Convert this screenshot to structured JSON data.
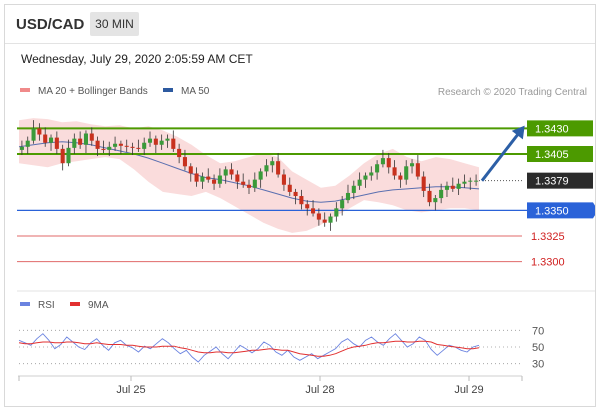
{
  "header": {
    "symbol": "USD/CAD",
    "timeframe": "30 MIN"
  },
  "datetime": "Wednesday, July 29, 2020 2:05:59 AM CET",
  "legend": {
    "bollinger": "MA 20 + Bollinger Bands",
    "ma50": "MA 50",
    "credit": "Research © 2020 Trading Central",
    "rsi": "RSI",
    "rsi_ma": "9MA"
  },
  "colors": {
    "resistance": "#4c9a00",
    "support": "#2a62d8",
    "minor_support": "#e06a6a",
    "up_candle": "#3a9a3a",
    "down_candle": "#c8311e",
    "bollinger_fill": "#f9d6d6",
    "ma50_line": "#5a6fb0",
    "arrow": "#2c5fa6",
    "rsi_line": "#6b83e0",
    "rsi_ma_line": "#e23030",
    "last_price_bg": "#2b2b2b"
  },
  "chart_data": {
    "type": "candlestick",
    "price_axis": {
      "range": [
        1.3285,
        1.3445
      ],
      "levels": [
        {
          "value": 1.343,
          "label": "1.3430",
          "kind": "resistance"
        },
        {
          "value": 1.3405,
          "label": "1.3405",
          "kind": "resistance"
        },
        {
          "value": 1.3379,
          "label": "1.3379",
          "kind": "last"
        },
        {
          "value": 1.335,
          "label": "1.3350",
          "kind": "support"
        },
        {
          "value": 1.3325,
          "label": "1.3325",
          "kind": "minor"
        },
        {
          "value": 1.33,
          "label": "1.3300",
          "kind": "minor"
        }
      ]
    },
    "x_ticks": [
      "Jul 25",
      "Jul 28",
      "Jul 29"
    ],
    "price_path": [
      1.3412,
      1.3418,
      1.343,
      1.3424,
      1.3416,
      1.3421,
      1.341,
      1.3396,
      1.3411,
      1.342,
      1.3414,
      1.3425,
      1.3418,
      1.341,
      1.3409,
      1.3412,
      1.3415,
      1.3413,
      1.3412,
      1.3411,
      1.341,
      1.3416,
      1.342,
      1.3414,
      1.3418,
      1.342,
      1.341,
      1.3402,
      1.3393,
      1.3386,
      1.3378,
      1.3383,
      1.338,
      1.3376,
      1.3384,
      1.339,
      1.3385,
      1.3378,
      1.3375,
      1.3372,
      1.338,
      1.3388,
      1.3394,
      1.3398,
      1.3385,
      1.3375,
      1.3368,
      1.3364,
      1.3356,
      1.3352,
      1.3347,
      1.3341,
      1.3338,
      1.3344,
      1.3352,
      1.336,
      1.3367,
      1.3374,
      1.338,
      1.3384,
      1.3387,
      1.3395,
      1.3401,
      1.3392,
      1.3384,
      1.338,
      1.3393,
      1.3396,
      1.3383,
      1.3369,
      1.3358,
      1.3362,
      1.337,
      1.3374,
      1.3371,
      1.3376,
      1.3378,
      1.3379,
      1.3379
    ],
    "bollinger": {
      "upper": [
        1.3438,
        1.344,
        1.3439,
        1.3436,
        1.3437,
        1.3434,
        1.3432,
        1.3433,
        1.343,
        1.3432,
        1.3428,
        1.3422,
        1.3414,
        1.3404,
        1.3396,
        1.3398,
        1.3402,
        1.3406,
        1.3402,
        1.3388,
        1.338,
        1.3372,
        1.3374,
        1.3384,
        1.3396,
        1.3405,
        1.341,
        1.3402,
        1.3398,
        1.3402,
        1.34,
        1.3396,
        1.3392
      ],
      "lower": [
        1.3396,
        1.3394,
        1.3392,
        1.3396,
        1.3398,
        1.34,
        1.3402,
        1.34,
        1.339,
        1.3378,
        1.3368,
        1.3366,
        1.3364,
        1.3368,
        1.3362,
        1.3354,
        1.3346,
        1.3338,
        1.3332,
        1.3328,
        1.333,
        1.3336,
        1.3344,
        1.3352,
        1.336,
        1.3358,
        1.3355,
        1.335,
        1.3348,
        1.335,
        1.3352,
        1.3352,
        1.335
      ]
    },
    "ma50": [
      1.3412,
      1.3414,
      1.3416,
      1.3417,
      1.3416,
      1.3414,
      1.3411,
      1.3408,
      1.3405,
      1.3401,
      1.3396,
      1.3391,
      1.3386,
      1.3382,
      1.338,
      1.3377,
      1.3374,
      1.337,
      1.3366,
      1.3362,
      1.3359,
      1.3358,
      1.3359,
      1.3362,
      1.3365,
      1.3368,
      1.337,
      1.3371,
      1.3372,
      1.3373,
      1.3373,
      1.3372,
      1.3371
    ],
    "forecast": {
      "from": 1.3379,
      "to": 1.343
    },
    "rsi": {
      "levels": [
        70,
        50,
        30
      ],
      "range": [
        20,
        80
      ],
      "rsi": [
        58,
        55,
        52,
        60,
        66,
        58,
        48,
        53,
        62,
        56,
        50,
        47,
        55,
        60,
        52,
        46,
        55,
        58,
        52,
        49,
        44,
        51,
        48,
        54,
        60,
        55,
        48,
        42,
        46,
        38,
        32,
        40,
        45,
        50,
        42,
        36,
        44,
        52,
        48,
        43,
        48,
        56,
        52,
        44,
        40,
        46,
        38,
        34,
        38,
        42,
        36,
        40,
        44,
        48,
        56,
        60,
        54,
        50,
        58,
        62,
        56,
        52,
        60,
        66,
        58,
        50,
        54,
        62,
        58,
        47,
        40,
        46,
        52,
        50,
        46,
        44,
        50,
        52
      ],
      "ma": [
        55,
        54,
        54,
        55,
        56,
        56,
        55,
        55,
        56,
        56,
        55,
        54,
        54,
        55,
        54,
        53,
        53,
        53,
        52,
        52,
        51,
        50,
        50,
        50,
        51,
        51,
        51,
        49,
        48,
        46,
        44,
        43,
        43,
        44,
        44,
        43,
        43,
        44,
        45,
        46,
        46,
        47,
        48,
        47,
        46,
        46,
        44,
        42,
        41,
        40,
        39,
        39,
        40,
        42,
        45,
        48,
        50,
        51,
        52,
        54,
        55,
        55,
        56,
        57,
        57,
        56,
        56,
        57,
        57,
        56,
        53,
        52,
        51,
        50,
        49,
        48,
        48,
        49
      ]
    }
  }
}
